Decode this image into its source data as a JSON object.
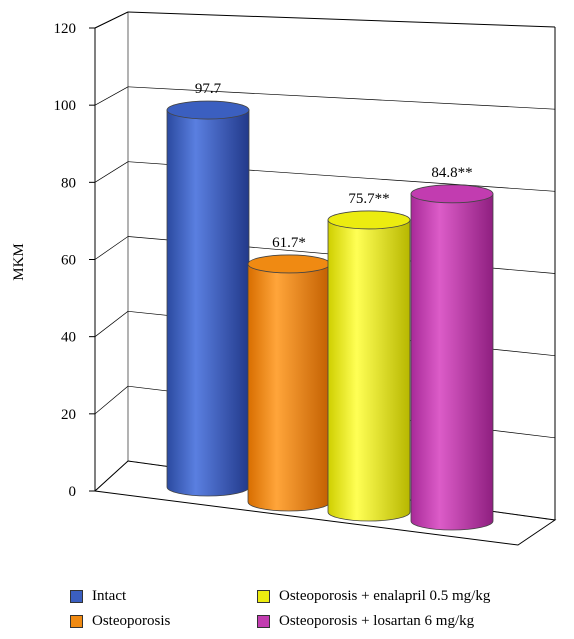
{
  "chart_data": {
    "type": "bar",
    "style": "3d-cylinder",
    "ylabel": "MKM",
    "ylim": [
      0,
      120
    ],
    "yticks": [
      0,
      20,
      40,
      60,
      80,
      100,
      120
    ],
    "categories": [
      "Intact",
      "Osteoporosis",
      "Osteoporosis + enalapril 0.5 mg/kg",
      "Osteoporosis + losartan 6 mg/kg"
    ],
    "values": [
      97.7,
      61.7,
      75.7,
      84.8
    ],
    "data_labels": [
      "97.7",
      "61.7*",
      "75.7**",
      "84.8**"
    ],
    "colors": [
      "#3b5fc0",
      "#f08a12",
      "#ecec10",
      "#c23cb0"
    ],
    "grid": true,
    "legend_position": "bottom"
  }
}
